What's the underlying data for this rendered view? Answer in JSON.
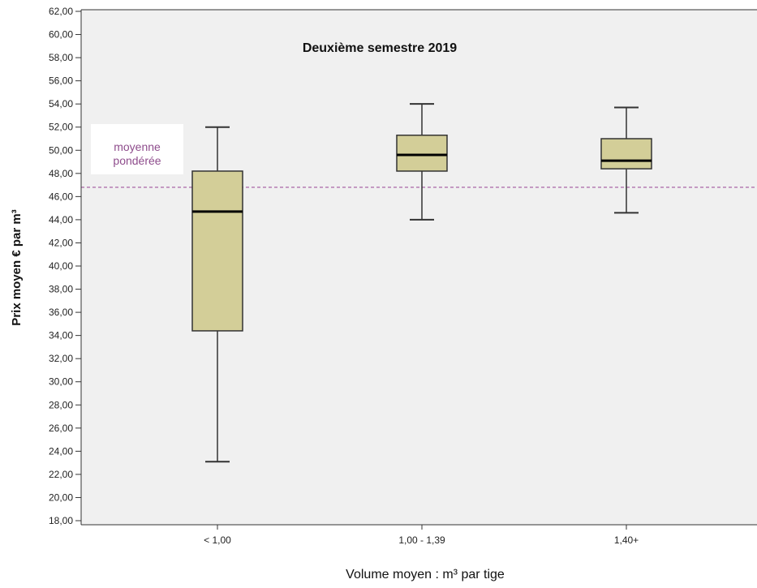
{
  "chart_data": {
    "type": "boxplot",
    "title": "Deuxième semestre 2019",
    "xlabel": "Volume moyen : m³ par tige",
    "ylabel": "Prix moyen € par m³",
    "ylim": [
      18,
      62
    ],
    "ytick_step": 2,
    "ytick_labels": [
      "18,00",
      "20,00",
      "22,00",
      "24,00",
      "26,00",
      "28,00",
      "30,00",
      "32,00",
      "34,00",
      "36,00",
      "38,00",
      "40,00",
      "42,00",
      "44,00",
      "46,00",
      "48,00",
      "50,00",
      "52,00",
      "54,00",
      "56,00",
      "58,00",
      "60,00",
      "62,00"
    ],
    "categories": [
      "< 1,00",
      "1,00 - 1,39",
      "1,40+"
    ],
    "boxes": [
      {
        "category": "< 1,00",
        "whisker_low": 23.1,
        "q1": 34.4,
        "median": 44.7,
        "q3": 48.2,
        "whisker_high": 52.0
      },
      {
        "category": "1,00 - 1,39",
        "whisker_low": 44.0,
        "q1": 48.2,
        "median": 49.6,
        "q3": 51.3,
        "whisker_high": 54.0
      },
      {
        "category": "1,40+",
        "whisker_low": 44.6,
        "q1": 48.4,
        "median": 49.1,
        "q3": 51.0,
        "whisker_high": 53.7
      }
    ],
    "reference_line": {
      "value": 46.8,
      "label": "moyenne pondérée",
      "label_lines": [
        "moyenne",
        "pondérée"
      ]
    },
    "grid": false,
    "colors": {
      "plot_background": "#f0f0f0",
      "box_fill": "#d3ce98",
      "box_stroke": "#333333",
      "median": "#000000",
      "reference_line": "#a0559e",
      "reference_label": "#8e4c8c"
    }
  }
}
